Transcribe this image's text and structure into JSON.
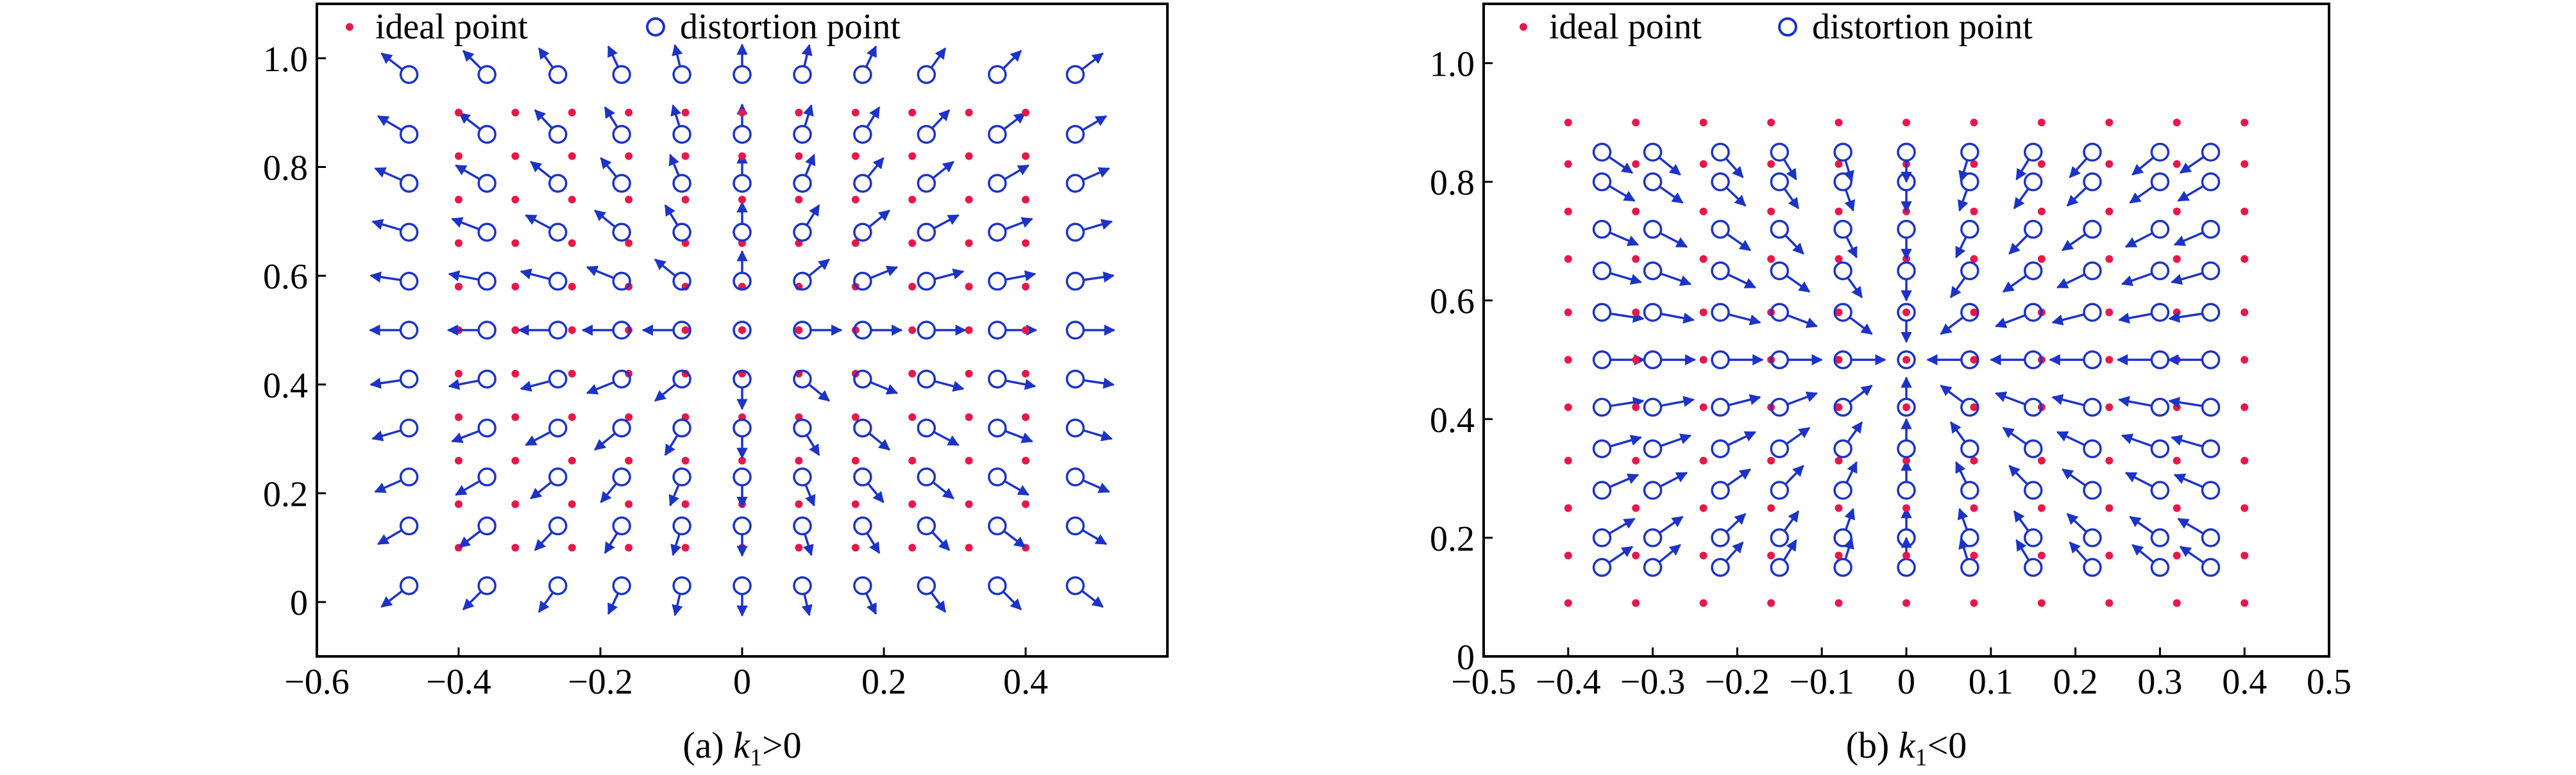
{
  "colors": {
    "ideal": "#e8174a",
    "distortion": "#1c33c8",
    "axis": "#000000"
  },
  "chart_data": [
    {
      "type": "scatter",
      "caption_prefix": "(a) ",
      "caption_k": "k",
      "caption_sub": "1",
      "caption_rel": ">0",
      "legend": {
        "ideal": "ideal point",
        "distortion": "distortion point",
        "placement": "top"
      },
      "xlim": [
        -0.6,
        0.6
      ],
      "ylim": [
        -0.1,
        1.1
      ],
      "xticks": [
        -0.6,
        -0.4,
        -0.2,
        0,
        0.2,
        0.4
      ],
      "xticklabels": [
        "−0.6",
        "−0.4",
        "−0.2",
        "0",
        "0.2",
        "0.4"
      ],
      "yticks": [
        0,
        0.2,
        0.4,
        0.6,
        0.8,
        1.0
      ],
      "yticklabels": [
        "0",
        "0.2",
        "0.4",
        "0.6",
        "0.8",
        "1.0"
      ],
      "ideal_grid": {
        "x": [
          -0.4,
          -0.32,
          -0.24,
          -0.16,
          -0.08,
          0,
          0.08,
          0.16,
          0.24,
          0.32,
          0.4
        ],
        "y": [
          0.1,
          0.18,
          0.26,
          0.34,
          0.42,
          0.5,
          0.58,
          0.66,
          0.74,
          0.82,
          0.9
        ]
      },
      "distortion_grid": {
        "x": [
          -0.47,
          -0.36,
          -0.26,
          -0.17,
          -0.085,
          0,
          0.085,
          0.17,
          0.26,
          0.36,
          0.47
        ],
        "y": [
          0.03,
          0.14,
          0.23,
          0.32,
          0.41,
          0.5,
          0.59,
          0.68,
          0.77,
          0.86,
          0.97
        ]
      },
      "center": [
        0,
        0.5
      ],
      "arrow_direction": "outward",
      "arrow_length": 0.055
    },
    {
      "type": "scatter",
      "caption_prefix": "(b) ",
      "caption_k": "k",
      "caption_sub": "1",
      "caption_rel": "<0",
      "legend": {
        "ideal": "ideal point",
        "distortion": "distortion point",
        "placement": "top"
      },
      "xlim": [
        -0.5,
        0.5
      ],
      "ylim": [
        0,
        1.1
      ],
      "xticks": [
        -0.5,
        -0.4,
        -0.3,
        -0.2,
        -0.1,
        0,
        0.1,
        0.2,
        0.3,
        0.4,
        0.5
      ],
      "xticklabels": [
        "−0.5",
        "−0.4",
        "−0.3",
        "−0.2",
        "−0.1",
        "0",
        "0.1",
        "0.2",
        "0.3",
        "0.4",
        "0.5"
      ],
      "yticks": [
        0,
        0.2,
        0.4,
        0.6,
        0.8,
        1.0
      ],
      "yticklabels": [
        "0",
        "0.2",
        "0.4",
        "0.6",
        "0.8",
        "1.0"
      ],
      "ideal_grid": {
        "x": [
          -0.4,
          -0.32,
          -0.24,
          -0.16,
          -0.08,
          0,
          0.08,
          0.16,
          0.24,
          0.32,
          0.4
        ],
        "y": [
          0.09,
          0.17,
          0.25,
          0.33,
          0.42,
          0.5,
          0.58,
          0.67,
          0.75,
          0.83,
          0.9
        ]
      },
      "distortion_grid": {
        "x": [
          -0.36,
          -0.3,
          -0.22,
          -0.15,
          -0.075,
          0,
          0.075,
          0.15,
          0.22,
          0.3,
          0.36
        ],
        "y": [
          0.15,
          0.2,
          0.28,
          0.35,
          0.42,
          0.5,
          0.58,
          0.65,
          0.72,
          0.8,
          0.85
        ]
      },
      "center": [
        0,
        0.5
      ],
      "arrow_direction": "inward",
      "arrow_length": 0.05
    }
  ]
}
